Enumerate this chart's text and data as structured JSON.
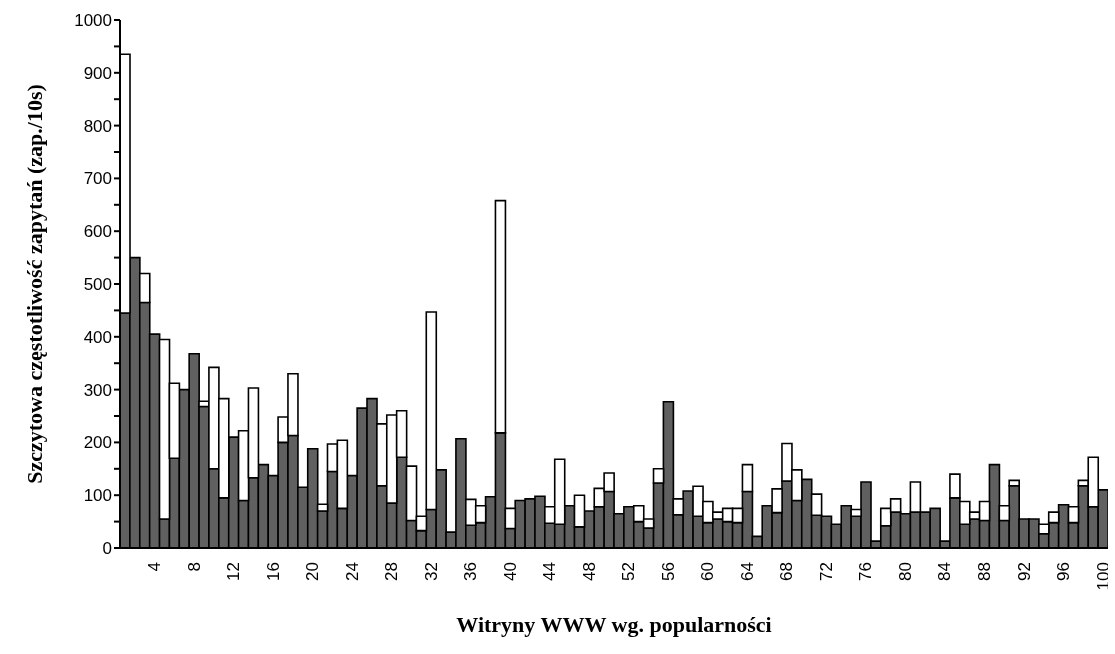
{
  "chart_data": {
    "type": "bar",
    "xlabel": "Witryny WWW wg. popularności",
    "ylabel": "Szczytowa częstotliwość zapytań (zap./10s)",
    "categories": [
      null,
      null,
      null,
      "4",
      null,
      null,
      null,
      "8",
      null,
      null,
      null,
      "12",
      null,
      null,
      null,
      "16",
      null,
      null,
      null,
      "20",
      null,
      null,
      null,
      "24",
      null,
      null,
      null,
      "28",
      null,
      null,
      null,
      "32",
      null,
      null,
      null,
      "36",
      null,
      null,
      null,
      "40",
      null,
      null,
      null,
      "44",
      null,
      null,
      null,
      "48",
      null,
      null,
      null,
      "52",
      null,
      null,
      null,
      "56",
      null,
      null,
      null,
      "60",
      null,
      null,
      null,
      "64",
      null,
      null,
      null,
      "68",
      null,
      null,
      null,
      "72",
      null,
      null,
      null,
      "76",
      null,
      null,
      null,
      "80",
      null,
      null,
      null,
      "84",
      null,
      null,
      null,
      "88",
      null,
      null,
      null,
      "92",
      null,
      null,
      null,
      "96",
      null,
      null,
      null,
      "100"
    ],
    "series": [
      {
        "color": "#606060",
        "values": [
          445,
          550,
          465,
          405,
          55,
          170,
          300,
          368,
          268,
          150,
          95,
          210,
          90,
          133,
          158,
          137,
          200,
          213,
          115,
          188,
          70,
          145,
          75,
          137,
          265,
          283,
          118,
          85,
          172,
          52,
          33,
          73,
          148,
          30,
          207,
          43,
          48,
          97,
          218,
          37,
          90,
          93,
          98,
          47,
          45,
          80,
          40,
          70,
          78,
          107,
          65,
          78,
          50,
          38,
          123,
          277,
          63,
          108,
          60,
          48,
          55,
          50,
          48,
          107,
          22,
          80,
          67,
          127,
          90,
          130,
          62,
          60,
          45,
          80,
          60,
          125,
          13,
          42,
          68,
          65,
          68,
          68,
          75,
          13,
          95,
          45,
          55,
          52,
          158,
          52,
          118,
          55,
          55,
          27,
          48,
          82,
          48,
          118,
          78,
          110
        ]
      },
      {
        "color": "#ffffff",
        "values": [
          490,
          null,
          55,
          null,
          340,
          142,
          null,
          null,
          10,
          192,
          188,
          null,
          132,
          170,
          null,
          null,
          48,
          117,
          null,
          null,
          13,
          52,
          129,
          null,
          null,
          null,
          117,
          167,
          88,
          103,
          27,
          374,
          null,
          null,
          null,
          49,
          32,
          null,
          440,
          38,
          null,
          null,
          null,
          31,
          123,
          null,
          60,
          null,
          35,
          35,
          null,
          null,
          30,
          17,
          27,
          null,
          30,
          null,
          57,
          40,
          13,
          25,
          27,
          51,
          null,
          null,
          45,
          71,
          58,
          null,
          40,
          null,
          null,
          null,
          13,
          null,
          null,
          33,
          25,
          null,
          57,
          null,
          null,
          null,
          45,
          43,
          13,
          36,
          null,
          28,
          10,
          null,
          null,
          18,
          20,
          null,
          30,
          10,
          94,
          null
        ]
      }
    ],
    "stacked": true,
    "ylim": [
      0,
      1000
    ],
    "yticks": [
      0,
      {
        "value": 50,
        "label": null
      },
      100,
      {
        "value": 150,
        "label": null
      },
      200,
      {
        "value": 250,
        "label": null
      },
      300,
      {
        "value": 350,
        "label": null
      },
      400,
      {
        "value": 450,
        "label": null
      },
      500,
      {
        "value": 550,
        "label": null
      },
      600,
      {
        "value": 650,
        "label": null
      },
      700,
      {
        "value": 750,
        "label": null
      },
      800,
      {
        "value": 850,
        "label": null
      },
      900,
      {
        "value": 950,
        "label": null
      },
      1000
    ],
    "legend": false,
    "grid": false
  }
}
